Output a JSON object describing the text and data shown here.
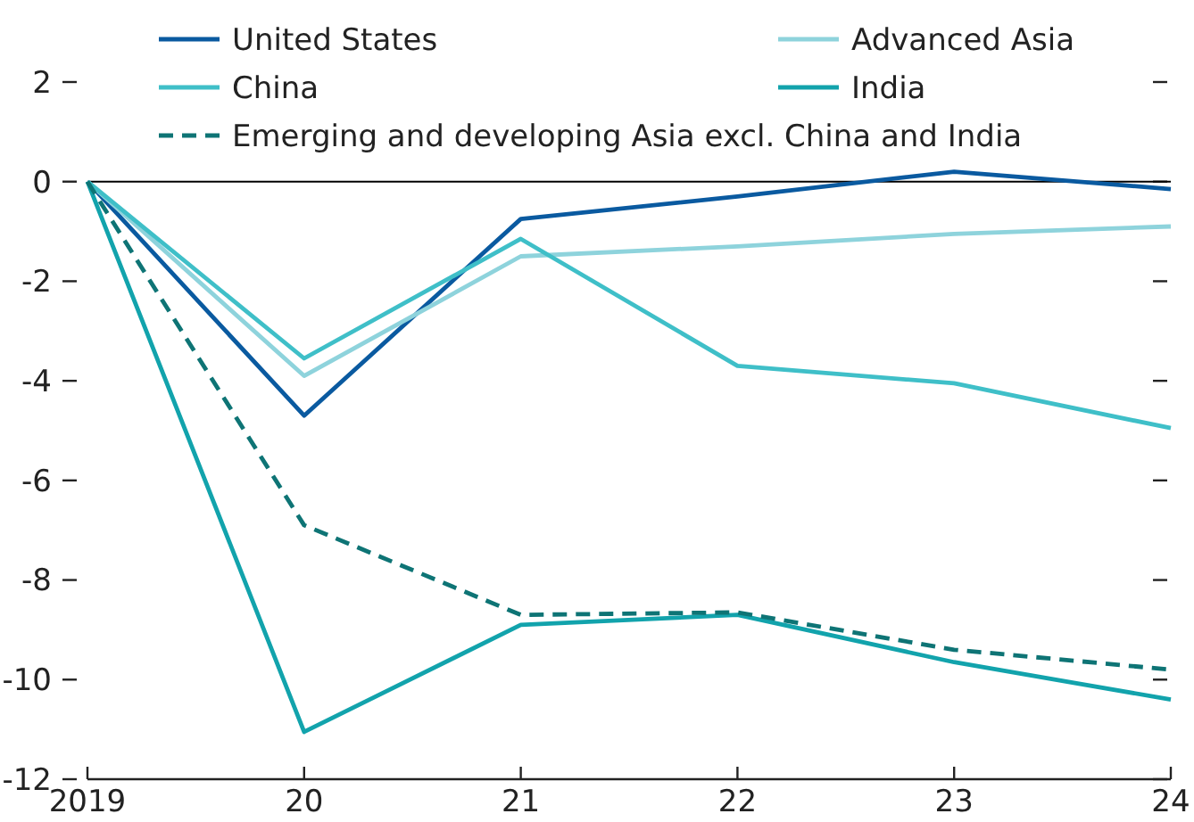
{
  "chart_data": {
    "type": "line",
    "x": [
      2019,
      2020,
      2021,
      2022,
      2023,
      2024
    ],
    "xlim": [
      2019,
      2024
    ],
    "xticks": [
      2019,
      {
        "value": 2020,
        "label": "20"
      },
      {
        "value": 2021,
        "label": "21"
      },
      {
        "value": 2022,
        "label": "22"
      },
      {
        "value": 2023,
        "label": "23"
      },
      {
        "value": 2024,
        "label": "24"
      }
    ],
    "ylim": [
      -12,
      2
    ],
    "yticks": [
      -12,
      -10,
      -8,
      -6,
      -4,
      -2,
      0,
      2
    ],
    "grid": false,
    "legend": "top",
    "ref_lines": [
      {
        "axis": "y",
        "value": 0,
        "color": "#000000"
      }
    ],
    "series": [
      {
        "name": "United States",
        "color": "#0a5aa0",
        "values": [
          0,
          -4.7,
          -0.75,
          -0.3,
          0.2,
          -0.15
        ]
      },
      {
        "name": "Advanced Asia",
        "color": "#8ed3dc",
        "values": [
          0,
          -3.9,
          -1.5,
          -1.3,
          -1.05,
          -0.9
        ]
      },
      {
        "name": "China",
        "color": "#3fbfc8",
        "values": [
          0,
          -3.55,
          -1.15,
          -3.7,
          -4.05,
          -4.95
        ]
      },
      {
        "name": "India",
        "color": "#12a3ac",
        "values": [
          0,
          -11.05,
          -8.9,
          -8.7,
          -9.65,
          -10.4
        ]
      },
      {
        "name": "Emerging and developing Asia excl. China and India",
        "color": "#0e7475",
        "line_style": "dashed",
        "values": [
          0,
          -6.9,
          -8.7,
          -8.65,
          -9.4,
          -9.8
        ]
      }
    ]
  }
}
